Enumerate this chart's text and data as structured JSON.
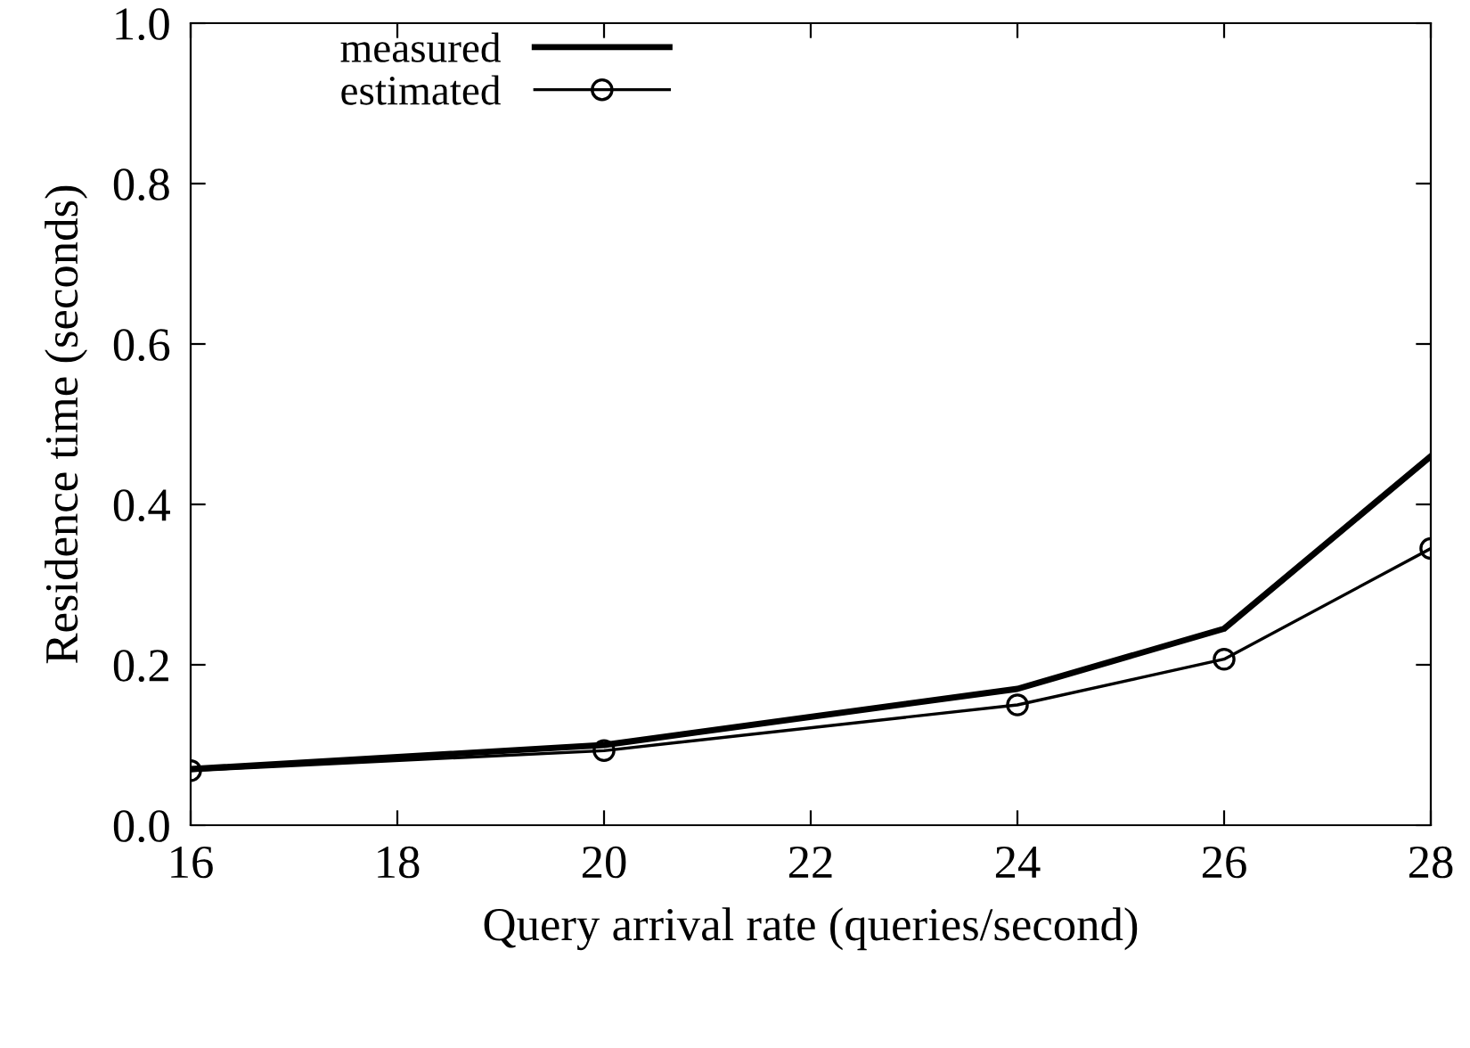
{
  "chart_data": {
    "type": "line",
    "xlabel": "Query arrival rate (queries/second)",
    "ylabel": "Residence time (seconds)",
    "x": [
      16,
      20,
      24,
      26,
      28
    ],
    "series": [
      {
        "name": "measured",
        "color": "#000000",
        "values": [
          0.07,
          0.1,
          0.17,
          0.245,
          0.46
        ],
        "marker": "none"
      },
      {
        "name": "estimated",
        "color": "#000000",
        "values": [
          0.068,
          0.093,
          0.15,
          0.207,
          0.345
        ],
        "marker": "circle"
      }
    ],
    "xlim": [
      16,
      28
    ],
    "xticks": [
      16,
      18,
      20,
      22,
      24,
      26,
      28
    ],
    "ylim": [
      0,
      1
    ],
    "yticks": [
      {
        "value": 0,
        "label": "0.0"
      },
      {
        "value": 0.2,
        "label": "0.2"
      },
      {
        "value": 0.4,
        "label": "0.4"
      },
      {
        "value": 0.6,
        "label": "0.6"
      },
      {
        "value": 0.8,
        "label": "0.8"
      },
      {
        "value": 1,
        "label": "1.0"
      }
    ],
    "grid": false,
    "legend": "top left"
  }
}
